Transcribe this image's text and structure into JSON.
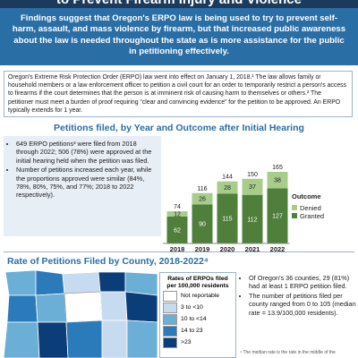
{
  "header": {
    "title": "to Prevent Firearm Injury and Violence"
  },
  "summary": "Findings suggest that Oregon's ERPO law is being used to try to prevent self-harm, assault, and mass violence by firearm, but that increased public awareness about the law is needed throughout the state as is more assistance for the public in petitioning effectively.",
  "intro": "Oregon's Extreme Risk Protection Order (ERPO) law went into effect on January 1, 2018.¹ The law allows family or household members or a law enforcement officer to petition a civil court for an order to temporarily restrict a person's access to firearms if the court determines that the person is at imminent risk of causing harm to themselves or others.² The petitioner must meet a burden of proof requiring “clear and convincing evidence” for the petition to be approved. An ERPO typically extends for 1 year.",
  "chart_data": {
    "type": "bar",
    "stacked": true,
    "title": "Petitions filed, by Year and Outcome after Initial Hearing",
    "categories": [
      "2018",
      "2019",
      "2020",
      "2021",
      "2022"
    ],
    "series": [
      {
        "name": "Granted",
        "color": "#4f7f3a",
        "values": [
          62,
          90,
          115,
          112,
          127
        ]
      },
      {
        "name": "Denied",
        "color": "#a8cc8c",
        "values": [
          12,
          26,
          28,
          37,
          38
        ]
      }
    ],
    "totals": [
      74,
      116,
      144,
      150,
      165
    ],
    "legend_title": "Outcome"
  },
  "bullets": [
    "649 ERPO petitions³ were filed from 2018 through 2022; 506 (78%) were approved at the initial hearing held when the petition was filed.",
    "Number of petitions increased each year, while the proportions approved were similar (84%, 78%, 80%, 75%, and 77%; 2018 to 2022 respectively)."
  ],
  "map": {
    "title": "Rate of Petitions Filed by County, 2018-2022⁴",
    "legend_title": "Rates of ERPOs filed per 100,000 residents",
    "legend": [
      {
        "label": "Not reportable",
        "color": "#ffffff"
      },
      {
        "label": "3 to <10",
        "color": "#c6dbef"
      },
      {
        "label": "10 to <14",
        "color": "#6baed6"
      },
      {
        "label": "14 to 23",
        "color": "#2b7bba"
      },
      {
        "label": ">23",
        "color": "#0b3d78"
      }
    ],
    "bullets": [
      "Of Oregon's 36 counties, 29 (81%) had at least 1 ERPO petition filed.",
      "The number of petitions filed per county ranged from 0 to 105 (median rate = 13.9/100,000 residents)."
    ],
    "footnote": "⁴ The median rate is the rate in the middle of the"
  }
}
